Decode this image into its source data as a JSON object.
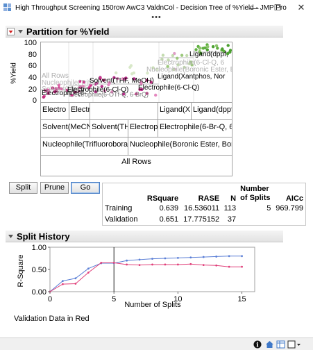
{
  "window": {
    "title": "High Throughput Screening 150row AwC3 ValdnCol - Decision Tree of %Yield - JMP Pro",
    "minimize": "—",
    "maximize": "☐",
    "close": "✕",
    "more": "•••"
  },
  "partition": {
    "title": "Partition for %Yield",
    "ylabel": "%Yield",
    "yticks": [
      "100",
      "80",
      "60",
      "40",
      "20",
      "0"
    ],
    "plot_labels": {
      "all_rows": "All Rows",
      "nucleophile_ghost": "Nucleophile(Trifluo",
      "solvent_ghost": "Solvent(MeCN",
      "electrophile_a": "Electrophile(6-",
      "solvent_b": "Solvent(THF, MeOH)",
      "electrophile_c": "Electrophile(6-Cl-Q)",
      "electrophile_d": "Electrophile(6-OTf-Q, 6-BrQ)",
      "ligand_dppf": "Ligand(dppf,",
      "electrophile_e": "Electrophile(6-Cl-Q, 6",
      "nucleophile_boronic": "Nucleophile(Boronic Ester, Bor",
      "ligand_xantphos": "Ligand(Xantphos, Nor",
      "electrophile_f": "Electrophile(6-Cl-Q)"
    },
    "tree": {
      "row1": [
        "Electro",
        "Electr",
        "",
        "Ligand(X",
        "Ligand(dppf"
      ],
      "row2": [
        "Solvent(MeCN",
        "Solvent(TH",
        "Electrop",
        "Electrophile(6-Br-Q, 6"
      ],
      "row3": [
        "Nucleophile(Trifluorobora",
        "Nucleophile(Boronic Ester, Bor"
      ],
      "root": "All Rows"
    }
  },
  "buttons": {
    "split": "Split",
    "prune": "Prune",
    "go": "Go"
  },
  "stats": {
    "headers": [
      "",
      "RSquare",
      "RASE",
      "N",
      "Number of Splits",
      "AICc"
    ],
    "headers_split": {
      "line1": "Number",
      "line2": "of Splits"
    },
    "rows": [
      {
        "label": "Training",
        "rsquare": "0.639",
        "rase": "16.536011",
        "n": "113",
        "splits": "5",
        "aicc": "969.799"
      },
      {
        "label": "Validation",
        "rsquare": "0.651",
        "rase": "17.775152",
        "n": "37",
        "splits": "",
        "aicc": ""
      }
    ]
  },
  "split_history": {
    "title": "Split History",
    "footer": "Validation Data in Red",
    "chart_data": {
      "type": "line",
      "xlabel": "Number of Splits",
      "ylabel": "R-Square",
      "xlim": [
        0,
        16
      ],
      "ylim": [
        0,
        1
      ],
      "xticks": [
        "0",
        "5",
        "10",
        "15"
      ],
      "yticks": [
        "1.00",
        "0.50",
        "0.00"
      ],
      "selected_split": 5,
      "series": [
        {
          "color": "#5b7fd6",
          "x": [
            0,
            1,
            2,
            3,
            4,
            5,
            6,
            7,
            8,
            9,
            10,
            11,
            12,
            13,
            14,
            15
          ],
          "y": [
            0.0,
            0.24,
            0.3,
            0.52,
            0.64,
            0.64,
            0.7,
            0.72,
            0.74,
            0.75,
            0.76,
            0.77,
            0.78,
            0.79,
            0.8,
            0.8
          ]
        },
        {
          "color": "#e0407a",
          "x": [
            0,
            1,
            2,
            3,
            4,
            5,
            6,
            7,
            8,
            9,
            10,
            11,
            12,
            13,
            14,
            15
          ],
          "y": [
            0.0,
            0.17,
            0.18,
            0.43,
            0.65,
            0.65,
            0.61,
            0.6,
            0.61,
            0.61,
            0.61,
            0.62,
            0.6,
            0.59,
            0.56,
            0.56
          ]
        }
      ]
    }
  },
  "statusbar": {
    "info": "i",
    "home": "home",
    "table": "table",
    "window": "window"
  }
}
